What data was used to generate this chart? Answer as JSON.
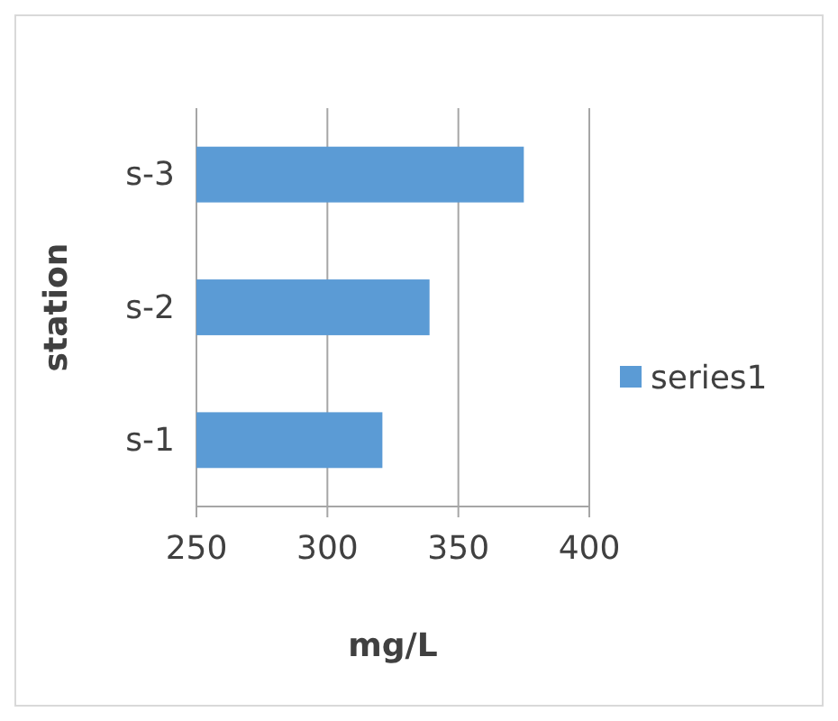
{
  "chart_data": {
    "type": "bar",
    "orientation": "horizontal",
    "categories": [
      "s-3",
      "s-2",
      "s-1"
    ],
    "series": [
      {
        "name": "series1",
        "color": "#5b9bd5",
        "values": [
          375,
          339,
          321
        ]
      }
    ],
    "xlim": [
      250,
      400
    ],
    "xticks": [
      250,
      300,
      350,
      400
    ],
    "xlabel": "mg/L",
    "ylabel": "station",
    "grid": "x",
    "legend": "right"
  }
}
